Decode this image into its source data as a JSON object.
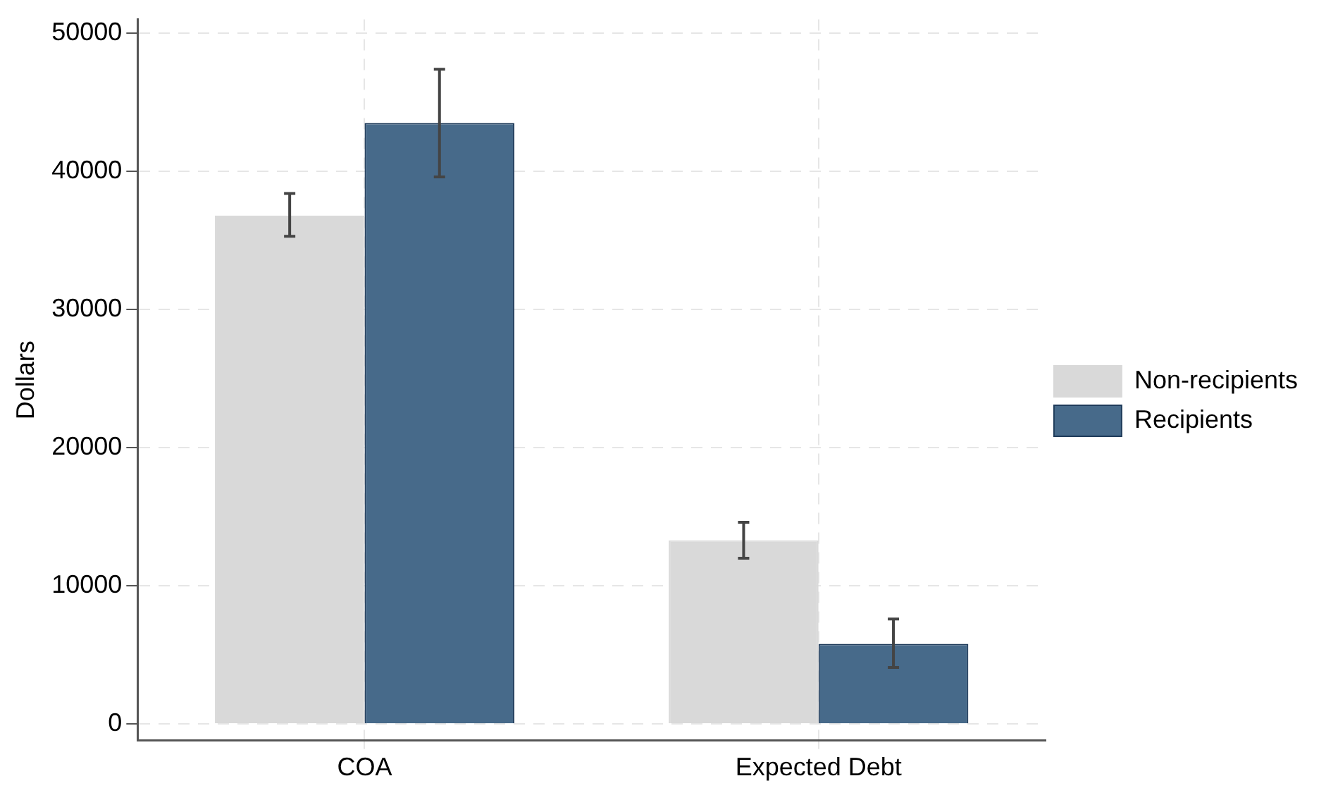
{
  "chart_data": {
    "type": "bar",
    "ylabel": "Dollars",
    "categories": [
      "COA",
      "Expected Debt"
    ],
    "series": [
      {
        "name": "Non-recipients",
        "color": "#d9d9d9",
        "values": [
          36800,
          13300
        ],
        "errors": [
          [
            35300,
            38400
          ],
          [
            12000,
            14600
          ]
        ]
      },
      {
        "name": "Recipients",
        "color": "#476a8a",
        "values": [
          43500,
          5800
        ],
        "errors": [
          [
            39600,
            47400
          ],
          [
            4100,
            7600
          ]
        ]
      }
    ],
    "ylim": [
      -1200,
      51000
    ],
    "yticks": [
      0,
      10000,
      20000,
      30000,
      40000,
      50000
    ],
    "grid": true,
    "legend": "right"
  }
}
